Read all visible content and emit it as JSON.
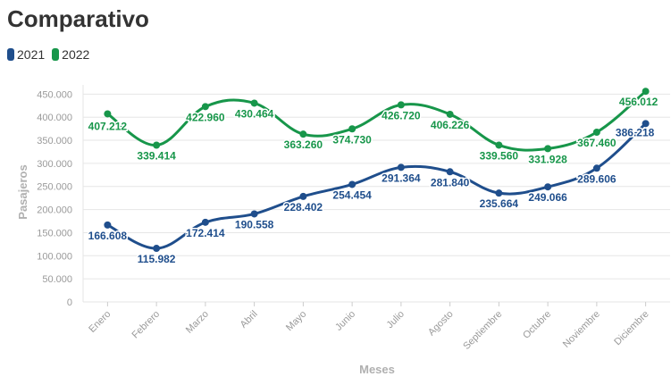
{
  "title": "Comparativo",
  "legend": [
    {
      "label": "2021",
      "color": "#1f4e8c"
    },
    {
      "label": "2022",
      "color": "#17964a"
    }
  ],
  "chart_data": {
    "type": "line",
    "categories": [
      "Enero",
      "Febrero",
      "Marzo",
      "Abril",
      "Mayo",
      "Junio",
      "Julio",
      "Agosto",
      "Septiembre",
      "Octubre",
      "Noviembre",
      "Diciembre"
    ],
    "series": [
      {
        "name": "2021",
        "color": "#1f4e8c",
        "values": [
          166608,
          115982,
          172414,
          190558,
          228402,
          254454,
          291364,
          281840,
          235664,
          249066,
          289606,
          386218
        ],
        "labels": [
          "166.608",
          "115.982",
          "172.414",
          "190.558",
          "228.402",
          "254.454",
          "291.364",
          "281.840",
          "235.664",
          "249.066",
          "289.606",
          "386.218"
        ]
      },
      {
        "name": "2022",
        "color": "#17964a",
        "values": [
          407212,
          339414,
          422960,
          430464,
          363260,
          374730,
          426720,
          406226,
          339560,
          331928,
          367460,
          456012
        ],
        "labels": [
          "407.212",
          "339.414",
          "422.960",
          "430.464",
          "363.260",
          "374.730",
          "426.720",
          "406.226",
          "339.560",
          "331.928",
          "367.460",
          "456.012"
        ]
      }
    ],
    "y_ticks": [
      0,
      50000,
      100000,
      150000,
      200000,
      250000,
      300000,
      350000,
      400000,
      450000
    ],
    "y_tick_labels": [
      "0",
      "50.000",
      "100.000",
      "150.000",
      "200.000",
      "250.000",
      "300.000",
      "350.000",
      "400.000",
      "450.000"
    ],
    "ylim": [
      0,
      470000
    ],
    "xlabel": "Meses",
    "ylabel": "Pasajeros",
    "grid": true,
    "legend_position": "top-left"
  }
}
